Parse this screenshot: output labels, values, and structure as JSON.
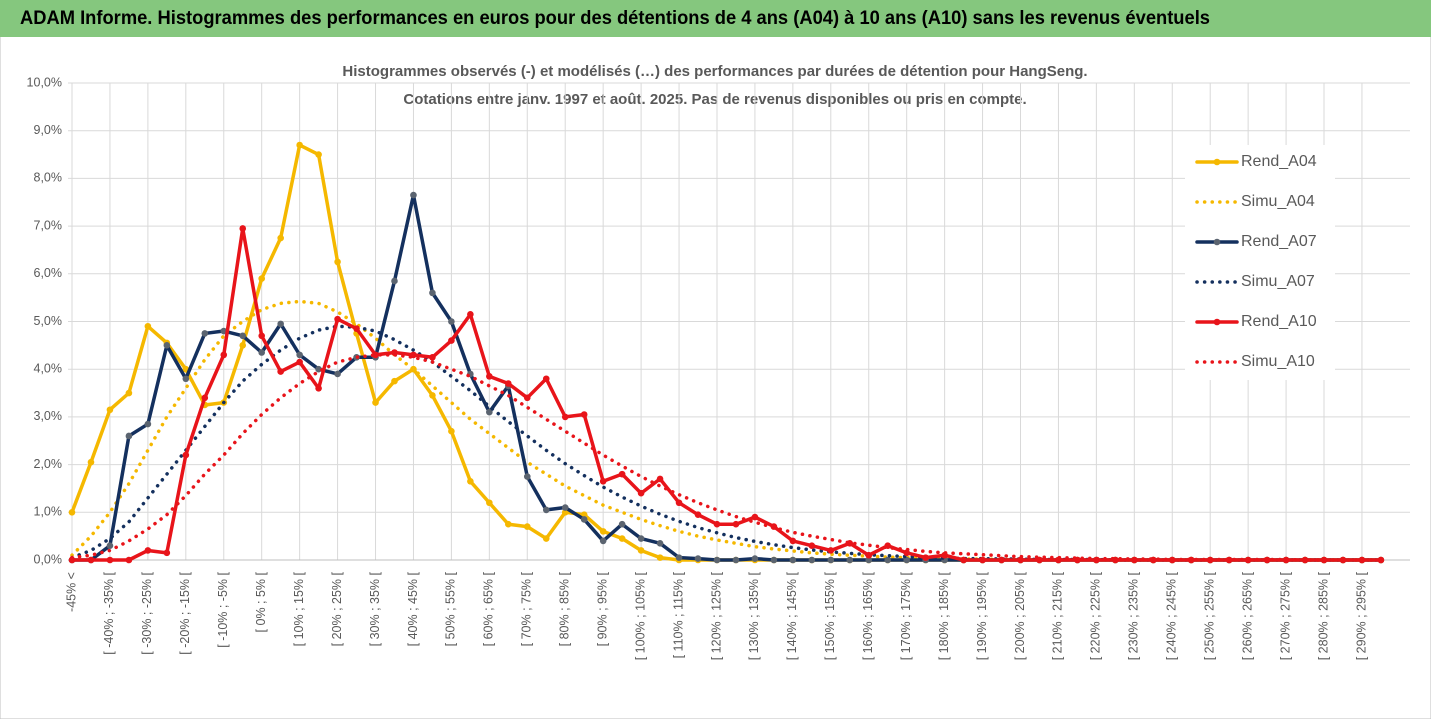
{
  "chart_data": {
    "type": "line",
    "title": "ADAM Informe. Histogrammes des performances en euros pour des détentions de 4 ans (A04) à 10 ans (A10) sans les revenus éventuels",
    "subtitle": [
      "Histogrammes observés (-) et modélisés (…) des performances par durées de détention pour HangSeng.",
      "Cotations entre janv. 1997 et août. 2025. Pas de revenus disponibles ou pris en compte."
    ],
    "categories": [
      "-45% <",
      null,
      "[ -40% ; -35% [",
      null,
      "[ -30% ; -25% [",
      null,
      "[ -20% ; -15% [",
      null,
      "[ -10% ; -5% [",
      null,
      "[ 0% ; 5% [",
      null,
      "[ 10% ; 15% [",
      null,
      "[ 20% ; 25% [",
      null,
      "[ 30% ; 35% [",
      null,
      "[ 40% ; 45% [",
      null,
      "[ 50% ; 55% [",
      null,
      "[ 60% ; 65% [",
      null,
      "[ 70% ; 75% [",
      null,
      "[ 80% ; 85% [",
      null,
      "[ 90% ; 95% [",
      null,
      "[ 100% ; 105% [",
      null,
      "[ 110% ; 115% [",
      null,
      "[ 120% ; 125% [",
      null,
      "[ 130% ; 135% [",
      null,
      "[ 140% ; 145% [",
      null,
      "[ 150% ; 155% [",
      null,
      "[ 160% ; 165% [",
      null,
      "[ 170% ; 175% [",
      null,
      "[ 180% ; 185% [",
      null,
      "[ 190% ; 195% [",
      null,
      "[ 200% ; 205% [",
      null,
      "[ 210% ; 215% [",
      null,
      "[ 220% ; 225% [",
      null,
      "[ 230% ; 235% [",
      null,
      "[ 240% ; 245% [",
      null,
      "[ 250% ; 255% [",
      null,
      "[ 260% ; 265% [",
      null,
      "[ 270% ; 275% [",
      null,
      "[ 280% ; 285% [",
      null,
      "[ 290% ; 295% [",
      null
    ],
    "series": [
      {
        "name": "Rend_A04",
        "color": "#f5b800",
        "dash": "solid",
        "markers": true,
        "marker_color": "#f5b800",
        "values": [
          1.0,
          2.05,
          3.15,
          3.5,
          4.9,
          4.55,
          4.0,
          3.25,
          3.3,
          4.5,
          5.9,
          6.75,
          8.7,
          8.5,
          6.25,
          4.75,
          3.3,
          3.75,
          4.0,
          3.45,
          2.7,
          1.65,
          1.2,
          0.75,
          0.7,
          0.45,
          1.0,
          0.95,
          0.6,
          0.45,
          0.2,
          0.05,
          0,
          0,
          0,
          0,
          0,
          0,
          0,
          0,
          0,
          0,
          0,
          0,
          0,
          0,
          0,
          0,
          0,
          0,
          0,
          0,
          0,
          0,
          0,
          0,
          0,
          0,
          0,
          0,
          0,
          0,
          0,
          0,
          0,
          0,
          0,
          0,
          0,
          0
        ]
      },
      {
        "name": "Simu_A04",
        "color": "#f5b800",
        "dash": "dotted",
        "markers": false,
        "values": [
          0.1,
          0.5,
          1.0,
          1.6,
          2.3,
          3.0,
          3.6,
          4.2,
          4.7,
          5.0,
          5.25,
          5.38,
          5.42,
          5.38,
          5.2,
          4.95,
          4.65,
          4.3,
          4.0,
          3.65,
          3.3,
          2.95,
          2.65,
          2.35,
          2.05,
          1.8,
          1.55,
          1.35,
          1.15,
          1.0,
          0.85,
          0.72,
          0.6,
          0.5,
          0.42,
          0.35,
          0.28,
          0.23,
          0.19,
          0.15,
          0.12,
          0.1,
          0.08,
          0.06,
          0.05,
          0.04,
          0.03,
          0.02,
          0.02,
          0.01,
          0.01,
          0.01,
          0.01,
          0.01,
          0,
          0,
          0,
          0,
          0,
          0,
          0,
          0,
          0,
          0,
          0,
          0,
          0,
          0,
          0,
          0
        ]
      },
      {
        "name": "Rend_A07",
        "color": "#14305e",
        "dash": "solid",
        "markers": true,
        "marker_color": "#5b6470",
        "values": [
          0,
          0,
          0.3,
          2.6,
          2.85,
          4.5,
          3.8,
          4.75,
          4.8,
          4.7,
          4.35,
          4.95,
          4.3,
          4.0,
          3.9,
          4.25,
          4.25,
          5.85,
          7.65,
          5.6,
          5.0,
          3.9,
          3.1,
          3.65,
          1.75,
          1.05,
          1.1,
          0.85,
          0.4,
          0.75,
          0.45,
          0.35,
          0.05,
          0.03,
          0,
          0,
          0.03,
          0,
          0,
          0,
          0,
          0,
          0,
          0,
          0,
          0,
          0,
          0,
          0,
          0,
          0,
          0,
          0,
          0,
          0,
          0,
          0,
          0,
          0,
          0,
          0,
          0,
          0,
          0,
          0,
          0,
          0,
          0,
          0,
          0
        ]
      },
      {
        "name": "Simu_A07",
        "color": "#14305e",
        "dash": "dotted",
        "markers": false,
        "values": [
          0.05,
          0.2,
          0.45,
          0.8,
          1.3,
          1.8,
          2.3,
          2.8,
          3.3,
          3.75,
          4.1,
          4.4,
          4.65,
          4.82,
          4.9,
          4.88,
          4.8,
          4.62,
          4.4,
          4.15,
          3.85,
          3.55,
          3.22,
          2.9,
          2.6,
          2.3,
          2.02,
          1.77,
          1.53,
          1.32,
          1.13,
          0.96,
          0.81,
          0.68,
          0.57,
          0.47,
          0.39,
          0.32,
          0.26,
          0.21,
          0.17,
          0.14,
          0.11,
          0.09,
          0.07,
          0.05,
          0.04,
          0.03,
          0.03,
          0.02,
          0.02,
          0.01,
          0.01,
          0.01,
          0.01,
          0,
          0,
          0,
          0,
          0,
          0,
          0,
          0,
          0,
          0,
          0,
          0,
          0,
          0,
          0
        ]
      },
      {
        "name": "Rend_A10",
        "color": "#e8141a",
        "dash": "solid",
        "markers": true,
        "marker_color": "#e8141a",
        "values": [
          0,
          0,
          0,
          0,
          0.2,
          0.15,
          2.2,
          3.4,
          4.3,
          6.95,
          4.7,
          3.95,
          4.15,
          3.6,
          5.05,
          4.85,
          4.3,
          4.35,
          4.3,
          4.25,
          4.6,
          5.15,
          3.85,
          3.7,
          3.4,
          3.8,
          3.0,
          3.05,
          1.65,
          1.8,
          1.4,
          1.7,
          1.2,
          0.95,
          0.75,
          0.75,
          0.9,
          0.7,
          0.4,
          0.3,
          0.2,
          0.35,
          0.1,
          0.3,
          0.15,
          0.05,
          0.1,
          0,
          0,
          0,
          0,
          0,
          0,
          0,
          0,
          0,
          0,
          0,
          0,
          0,
          0,
          0,
          0,
          0,
          0,
          0,
          0,
          0,
          0,
          0
        ]
      },
      {
        "name": "Simu_A10",
        "color": "#e8141a",
        "dash": "dotted",
        "markers": false,
        "values": [
          0.05,
          0.1,
          0.2,
          0.4,
          0.65,
          0.95,
          1.35,
          1.8,
          2.2,
          2.65,
          3.05,
          3.4,
          3.7,
          3.95,
          4.15,
          4.25,
          4.3,
          4.3,
          4.25,
          4.15,
          4.0,
          3.85,
          3.65,
          3.45,
          3.2,
          2.95,
          2.7,
          2.45,
          2.2,
          1.97,
          1.75,
          1.55,
          1.37,
          1.2,
          1.05,
          0.91,
          0.79,
          0.68,
          0.58,
          0.5,
          0.43,
          0.36,
          0.31,
          0.26,
          0.22,
          0.18,
          0.15,
          0.13,
          0.11,
          0.09,
          0.07,
          0.06,
          0.05,
          0.04,
          0.03,
          0.03,
          0.02,
          0.02,
          0.01,
          0.01,
          0.01,
          0.01,
          0.01,
          0.01,
          0.01,
          0,
          0,
          0,
          0,
          0
        ]
      }
    ],
    "ylim": [
      0,
      10
    ],
    "yticks": [
      {
        "value": 0,
        "label": "0,0%"
      },
      {
        "value": 1,
        "label": "1,0%"
      },
      {
        "value": 2,
        "label": "2,0%"
      },
      {
        "value": 3,
        "label": "3,0%"
      },
      {
        "value": 4,
        "label": "4,0%"
      },
      {
        "value": 5,
        "label": "5,0%"
      },
      {
        "value": 6,
        "label": "6,0%"
      },
      {
        "value": 7,
        "label": "7,0%"
      },
      {
        "value": 8,
        "label": "8,0%"
      },
      {
        "value": 9,
        "label": "9,0%"
      },
      {
        "value": 10,
        "label": "10,0%"
      }
    ],
    "grid": true,
    "legend": "right"
  }
}
